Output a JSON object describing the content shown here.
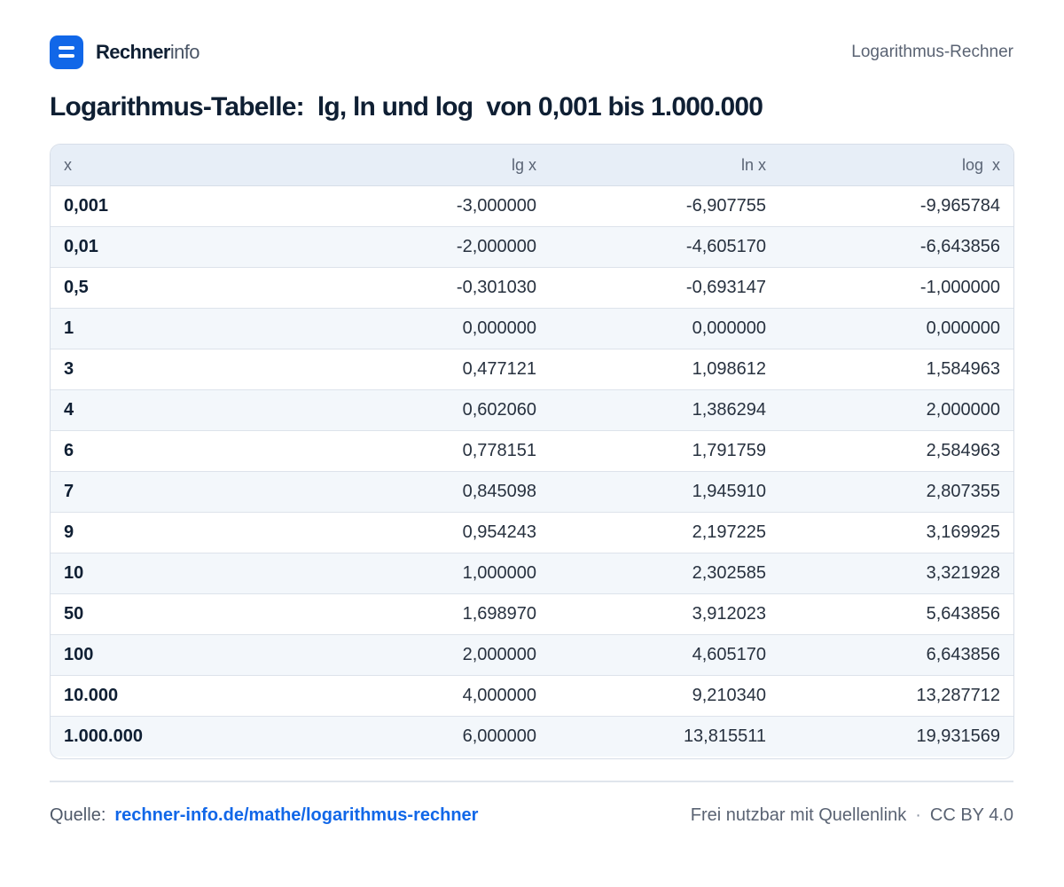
{
  "brand": {
    "name_bold": "Rechner",
    "name_light": "info"
  },
  "header": {
    "page_name": "Logarithmus-Rechner"
  },
  "title": "Logarithmus-Tabelle:  lg, ln und log  von 0,001 bis 1.000.000",
  "table": {
    "columns": [
      "x",
      "lg x",
      "ln x",
      "log  x"
    ],
    "rows": [
      [
        "0,001",
        "-3,000000",
        "-6,907755",
        "-9,965784"
      ],
      [
        "0,01",
        "-2,000000",
        "-4,605170",
        "-6,643856"
      ],
      [
        "0,5",
        "-0,301030",
        "-0,693147",
        "-1,000000"
      ],
      [
        "1",
        "0,000000",
        "0,000000",
        "0,000000"
      ],
      [
        "3",
        "0,477121",
        "1,098612",
        "1,584963"
      ],
      [
        "4",
        "0,602060",
        "1,386294",
        "2,000000"
      ],
      [
        "6",
        "0,778151",
        "1,791759",
        "2,584963"
      ],
      [
        "7",
        "0,845098",
        "1,945910",
        "2,807355"
      ],
      [
        "9",
        "0,954243",
        "2,197225",
        "3,169925"
      ],
      [
        "10",
        "1,000000",
        "2,302585",
        "3,321928"
      ],
      [
        "50",
        "1,698970",
        "3,912023",
        "5,643856"
      ],
      [
        "100",
        "2,000000",
        "4,605170",
        "6,643856"
      ],
      [
        "10.000",
        "4,000000",
        "9,210340",
        "13,287712"
      ],
      [
        "1.000.000",
        "6,000000",
        "13,815511",
        "19,931569"
      ]
    ]
  },
  "footer": {
    "source_label": "Quelle:",
    "source_link": "rechner-info.de/mathe/logarithmus-rechner",
    "usage": "Frei nutzbar mit Quellenlink",
    "separator": "·",
    "license": "CC BY 4.0"
  },
  "colors": {
    "accent": "#1167e8",
    "header_bg": "#e7eef7",
    "stripe_bg": "#f3f7fb"
  }
}
